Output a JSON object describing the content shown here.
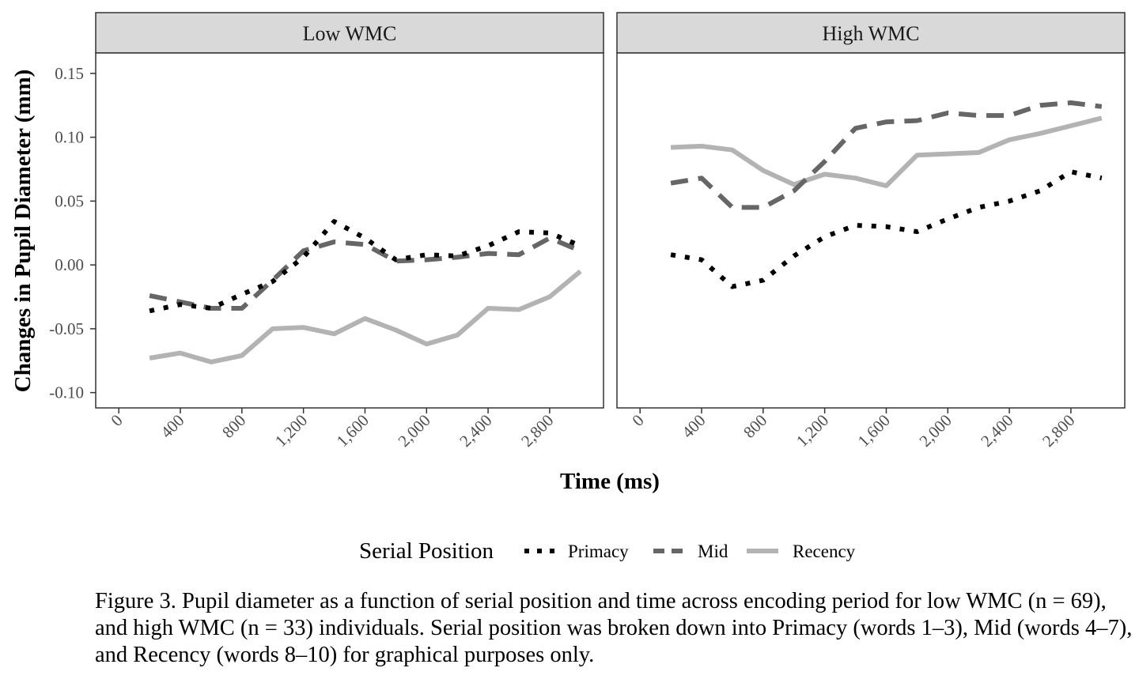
{
  "chart_data": {
    "type": "line",
    "ylabel": "Changes in Pupil Diameter (mm)",
    "xlabel": "Time (ms)",
    "ylim": [
      -0.112,
      0.166
    ],
    "xlim": [
      -150,
      3150
    ],
    "y_ticks": [
      -0.1,
      -0.05,
      0.0,
      0.05,
      0.1,
      0.15
    ],
    "y_tick_labels": [
      "-0.10",
      "-0.05",
      "0.00",
      "0.05",
      "0.10",
      "0.15"
    ],
    "x_ticks": [
      0,
      400,
      800,
      1200,
      1600,
      2000,
      2400,
      2800
    ],
    "x_tick_labels": [
      "0",
      "400",
      "800",
      "1,200",
      "1,600",
      "2,000",
      "2,400",
      "2,800"
    ],
    "grid": false,
    "legend": {
      "title": "Serial Position",
      "placement": "bottom",
      "entries": [
        "Primacy",
        "Mid",
        "Recency"
      ]
    },
    "x": [
      200,
      400,
      600,
      800,
      1000,
      1200,
      1400,
      1600,
      1800,
      2000,
      2200,
      2400,
      2600,
      2800,
      3000
    ],
    "panels": [
      {
        "title": "Low WMC",
        "series": [
          {
            "name": "Primacy",
            "color": "#000000",
            "style": "dotted",
            "values": [
              -0.036,
              -0.031,
              -0.034,
              -0.023,
              -0.013,
              0.006,
              0.034,
              0.021,
              0.004,
              0.008,
              0.007,
              0.015,
              0.026,
              0.025,
              0.015
            ]
          },
          {
            "name": "Mid",
            "color": "#666666",
            "style": "dashed",
            "values": [
              -0.024,
              -0.029,
              -0.034,
              -0.034,
              -0.012,
              0.011,
              0.018,
              0.016,
              0.003,
              0.004,
              0.006,
              0.009,
              0.008,
              0.021,
              0.011
            ]
          },
          {
            "name": "Recency",
            "color": "#b3b3b3",
            "style": "solid",
            "values": [
              -0.073,
              -0.069,
              -0.076,
              -0.071,
              -0.05,
              -0.049,
              -0.054,
              -0.042,
              -0.051,
              -0.062,
              -0.055,
              -0.034,
              -0.035,
              -0.025,
              -0.005
            ]
          }
        ]
      },
      {
        "title": "High WMC",
        "series": [
          {
            "name": "Primacy",
            "color": "#000000",
            "style": "dotted",
            "values": [
              0.008,
              0.004,
              -0.017,
              -0.012,
              0.007,
              0.022,
              0.031,
              0.03,
              0.026,
              0.036,
              0.045,
              0.05,
              0.058,
              0.073,
              0.068
            ]
          },
          {
            "name": "Mid",
            "color": "#666666",
            "style": "dashed",
            "values": [
              0.064,
              0.068,
              0.045,
              0.045,
              0.058,
              0.081,
              0.107,
              0.112,
              0.113,
              0.119,
              0.117,
              0.117,
              0.125,
              0.127,
              0.124
            ]
          },
          {
            "name": "Recency",
            "color": "#b3b3b3",
            "style": "solid",
            "values": [
              0.092,
              0.093,
              0.09,
              0.074,
              0.063,
              0.071,
              0.068,
              0.062,
              0.086,
              0.087,
              0.088,
              0.098,
              0.103,
              0.109,
              0.115
            ]
          }
        ]
      }
    ]
  },
  "caption": "Figure 3. Pupil diameter as a function of serial position and time across encoding period for low WMC (n = 69), and high WMC (n = 33) individuals. Serial position was broken down into Primacy (words 1–3), Mid (words 4–7), and Recency (words 8–10) for graphical purposes only."
}
